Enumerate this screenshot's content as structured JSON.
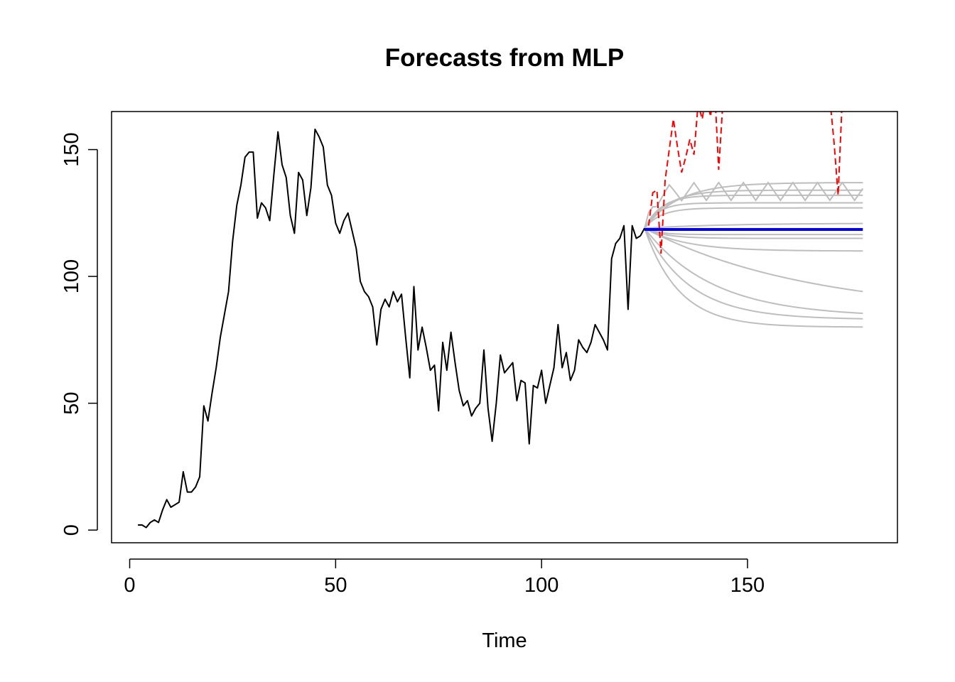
{
  "chart_data": {
    "type": "line",
    "title": "Forecasts from MLP",
    "xlabel": "Time",
    "ylabel": "",
    "xlim": [
      -4.4,
      186.4
    ],
    "ylim": [
      -5,
      165
    ],
    "x_ticks": [
      0,
      50,
      100,
      150
    ],
    "y_ticks": [
      0,
      50,
      100,
      150
    ],
    "grid": false,
    "legend": "none",
    "colors": {
      "observed": "#000000",
      "fitted": "#ff0000",
      "simulations": "#bebebe",
      "forecast": "#0000ff"
    },
    "observed": {
      "x_start": 2,
      "values": [
        2,
        2,
        1,
        3,
        4,
        3,
        8,
        12,
        9,
        10,
        11,
        23,
        15,
        15,
        17,
        21,
        49,
        43,
        54,
        64,
        76,
        85,
        94,
        114,
        128,
        136,
        147,
        149,
        149,
        123,
        129,
        127,
        122,
        140,
        157,
        144,
        139,
        124,
        117,
        141,
        138,
        124,
        135,
        158,
        155,
        151,
        136,
        132,
        121,
        117,
        122,
        125,
        118,
        111,
        98,
        94,
        92,
        88,
        73,
        87,
        91,
        88,
        94,
        90,
        93,
        76,
        60,
        96,
        71,
        80,
        72,
        63,
        65,
        47,
        74,
        63,
        78,
        66,
        55,
        49,
        51,
        45,
        48,
        50,
        71,
        48,
        35,
        50,
        69,
        62,
        64,
        66,
        51,
        59,
        58,
        34,
        57,
        56,
        63,
        50,
        57,
        64,
        81,
        64,
        70,
        59,
        63,
        75,
        72,
        70,
        74,
        81,
        78,
        75,
        71,
        107,
        113,
        115,
        120,
        87,
        120,
        115,
        116,
        119
      ]
    },
    "fitted": {
      "style": "dashed",
      "segments": [
        {
          "x": [
            126,
            127,
            128,
            129,
            130,
            131,
            132,
            133,
            134,
            135,
            136,
            137,
            138,
            139,
            140,
            141,
            142,
            143,
            144
          ],
          "y": [
            120,
            133,
            134,
            109,
            138,
            150,
            162,
            151,
            141,
            147,
            154,
            148,
            168,
            162,
            172,
            163,
            175,
            142,
            168
          ]
        },
        {
          "x": [
            170,
            171,
            172,
            173
          ],
          "y": [
            170,
            153,
            132,
            170
          ]
        }
      ]
    },
    "forecast": {
      "x_start": 125,
      "x_end": 178,
      "value": 118.5
    },
    "simulations": [
      {
        "start": 119,
        "end": 80,
        "rate": 0.12
      },
      {
        "start": 119,
        "end": 83,
        "rate": 0.09
      },
      {
        "start": 119,
        "end": 84,
        "rate": 0.06
      },
      {
        "start": 119,
        "end": 85,
        "rate": 0.025
      },
      {
        "start": 119,
        "end": 110,
        "rate": 0.1
      },
      {
        "start": 119,
        "end": 115,
        "rate": 0.2
      },
      {
        "start": 119,
        "end": 116.5,
        "rate": 0.3
      },
      {
        "start": 119,
        "end": 121,
        "rate": 0.05
      },
      {
        "start": 119,
        "end": 127,
        "rate": 0.25
      },
      {
        "start": 119,
        "end": 129,
        "rate": 0.3
      },
      {
        "start": 119,
        "end": 132,
        "rate": 0.25
      },
      {
        "start": 119,
        "end": 134,
        "rate": 0.18
      },
      {
        "start": 119,
        "end": 137,
        "rate": 0.12
      },
      {
        "start": 119,
        "end": 133.5,
        "rate": 0.5,
        "osc": 3.5,
        "period": 6
      }
    ]
  }
}
